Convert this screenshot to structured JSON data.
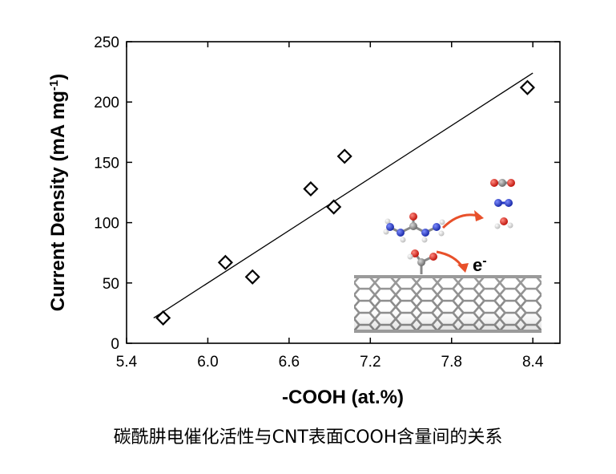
{
  "chart_data": {
    "type": "scatter",
    "title": "",
    "xlabel": "-COOH (at.%)",
    "ylabel_main": "Current Density (mA mg",
    "ylabel_sup": "-1",
    "ylabel_tail": ")",
    "xlim": [
      5.4,
      8.6
    ],
    "ylim": [
      0,
      250
    ],
    "xticks": [
      5.4,
      6.0,
      6.6,
      7.2,
      7.8,
      8.4
    ],
    "xtick_labels": [
      "5.4",
      "6.0",
      "6.6",
      "7.2",
      "7.8",
      "8.4"
    ],
    "yticks": [
      0,
      50,
      100,
      150,
      200,
      250
    ],
    "ytick_labels": [
      "0",
      "50",
      "100",
      "150",
      "200",
      "250"
    ],
    "series": [
      {
        "name": "data",
        "marker": "diamond-open",
        "points": [
          {
            "x": 5.67,
            "y": 21
          },
          {
            "x": 6.13,
            "y": 67
          },
          {
            "x": 6.33,
            "y": 55
          },
          {
            "x": 6.76,
            "y": 128
          },
          {
            "x": 6.93,
            "y": 113
          },
          {
            "x": 7.01,
            "y": 155
          },
          {
            "x": 8.36,
            "y": 212
          }
        ]
      }
    ],
    "fit_line": {
      "x": [
        5.6,
        8.4
      ],
      "y": [
        21,
        224
      ]
    },
    "inset": {
      "electron_label": "e",
      "electron_sup": "-",
      "description_icon": "cnt-cooh-schematic"
    }
  },
  "caption": "碳酰肼电催化活性与CNT表面COOH含量间的关系",
  "colors": {
    "axis": "#000000",
    "arrow": "#e8502a",
    "carbon": "#8a8a8a",
    "oxygen": "#e0241b",
    "nitrogen": "#2438c8",
    "hydrogen": "#f2f2f2"
  }
}
